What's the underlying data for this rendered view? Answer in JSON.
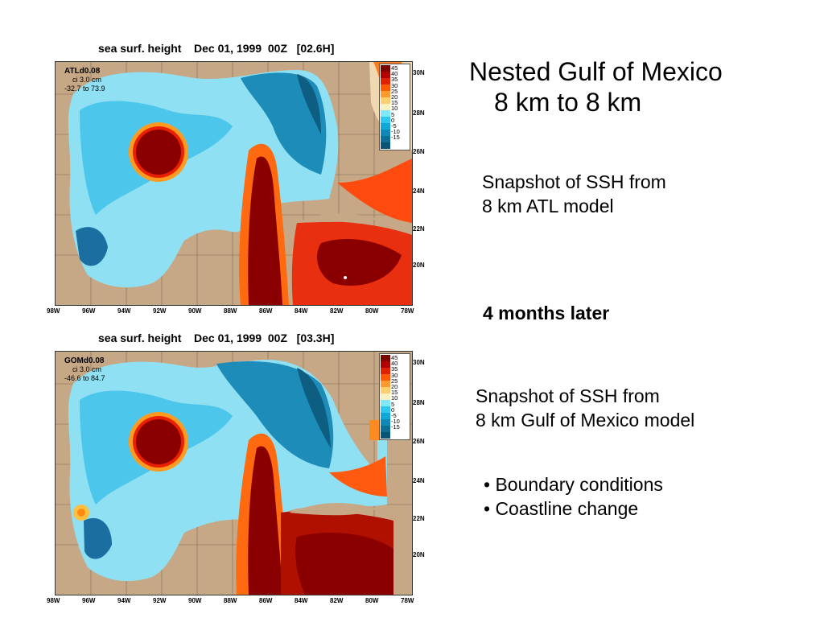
{
  "slide": {
    "title_line1": "Nested Gulf of Mexico",
    "title_line2": "8 km to 8 km",
    "snapshot1": [
      "Snapshot of SSH from",
      "8 km ATL model"
    ],
    "later": "4 months later",
    "snapshot2": [
      "Snapshot of SSH from",
      "8 km Gulf of Mexico model"
    ],
    "bullets": [
      "• Boundary conditions",
      "• Coastline change"
    ]
  },
  "maps": [
    {
      "title": "sea surf. height    Dec 01, 1999  00Z   [02.6H]",
      "model": "ATLd0.08",
      "ci": "ci  3.0 cm",
      "range": "-32.7 to   73.9"
    },
    {
      "title": "sea surf. height    Dec 01, 1999  00Z   [03.3H]",
      "model": "GOMd0.08",
      "ci": "ci  3.0 cm",
      "range": "-46.6 to   84.7"
    }
  ],
  "colorbar": {
    "ticks": [
      "45",
      "40",
      "35",
      "30",
      "25",
      "20",
      "15",
      "10",
      "5",
      "0",
      "-5",
      "-10",
      "-15"
    ],
    "colors": [
      "#7a0000",
      "#b00000",
      "#e02000",
      "#ff5a00",
      "#ff9a30",
      "#ffd070",
      "#f8f0c0",
      "#80e8f8",
      "#30c8ec",
      "#10a8d8",
      "#1088b8",
      "#0d6e96",
      "#0a5575"
    ]
  },
  "lat_labels": [
    "30N",
    "28N",
    "26N",
    "24N",
    "22N",
    "20N"
  ],
  "lon_labels": [
    "98W",
    "96W",
    "94W",
    "92W",
    "90W",
    "88W",
    "86W",
    "84W",
    "82W",
    "80W",
    "78W"
  ]
}
